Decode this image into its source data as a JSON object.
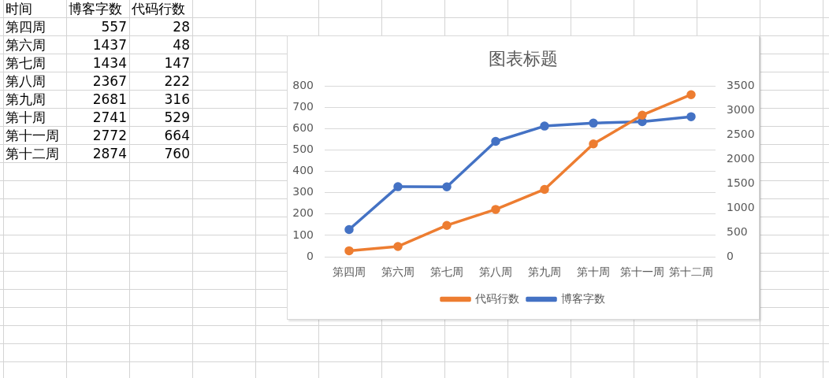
{
  "chart_data": [
    {
      "type": "other",
      "annotations": [
        "时间"
      ],
      "categories": [
        "第四周",
        "第六周",
        "第七周",
        "第八周",
        "第九周",
        "第十周",
        "第十一周",
        "第十二周"
      ],
      "series": [
        {
          "name": "博客字数",
          "values": [
            557,
            1437,
            1434,
            2367,
            2681,
            2741,
            2772,
            2874
          ]
        },
        {
          "name": "代码行数",
          "values": [
            28,
            48,
            147,
            222,
            316,
            529,
            664,
            760
          ]
        }
      ],
      "data_labels": true
    },
    {
      "type": "line",
      "title": "图表标题",
      "categories": [
        "第四周",
        "第六周",
        "第七周",
        "第八周",
        "第九周",
        "第十周",
        "第十一周",
        "第十二周"
      ],
      "series": [
        {
          "name": "代码行数",
          "color": "#ed7d31",
          "values": [
            28,
            48,
            147,
            222,
            316,
            529,
            664,
            760
          ]
        },
        {
          "name": "博客字数",
          "color": "#4472c4",
          "axis": "y2",
          "values": [
            557,
            1437,
            1434,
            2367,
            2681,
            2741,
            2772,
            2874
          ]
        }
      ],
      "ylim": [
        0,
        800
      ],
      "yticks": [
        0,
        100,
        200,
        300,
        400,
        500,
        600,
        700,
        800
      ],
      "y2lim": [
        0,
        3500
      ],
      "y2ticks": [
        0,
        500,
        1000,
        1500,
        2000,
        2500,
        3000,
        3500
      ],
      "grid": "y",
      "legend": "bottom",
      "marker": "circle"
    }
  ]
}
